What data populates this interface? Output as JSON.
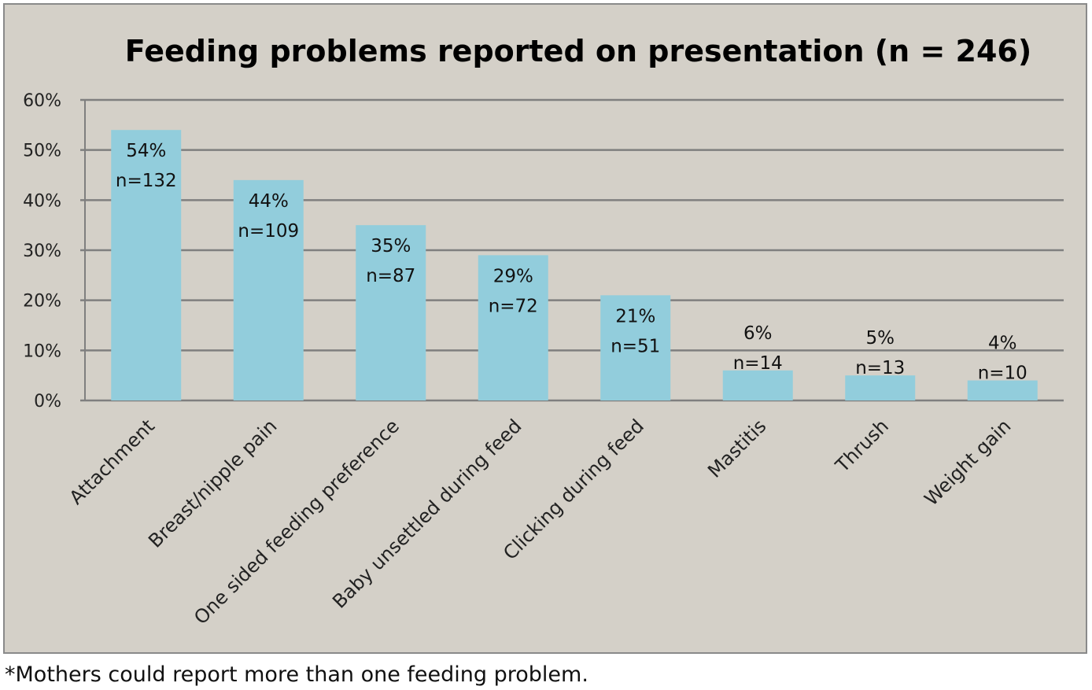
{
  "chart_data": {
    "type": "bar",
    "title": "Feeding problems reported on presentation (n = 246)",
    "xlabel": "",
    "ylabel": "",
    "ylim": [
      0,
      60
    ],
    "yticks": [
      "0%",
      "10%",
      "20%",
      "30%",
      "40%",
      "50%",
      "60%"
    ],
    "grid": true,
    "bar_color": "#92cddc",
    "categories": [
      "Attachment",
      "Breast/nipple pain",
      "One sided feeding preference",
      "Baby unsettled during feed",
      "Clicking during feed",
      "Mastitis",
      "Thrush",
      "Weight gain"
    ],
    "values": [
      54,
      44,
      35,
      29,
      21,
      6,
      5,
      4
    ],
    "percent_labels": [
      "54%",
      "44%",
      "35%",
      "29%",
      "21%",
      "6%",
      "5%",
      "4%"
    ],
    "n_labels": [
      "n=132",
      "n=109",
      "n=87",
      "n=72",
      "n=51",
      "n=14",
      "n=13",
      "n=10"
    ]
  },
  "footnote": "*Mothers could report more than one feeding problem."
}
